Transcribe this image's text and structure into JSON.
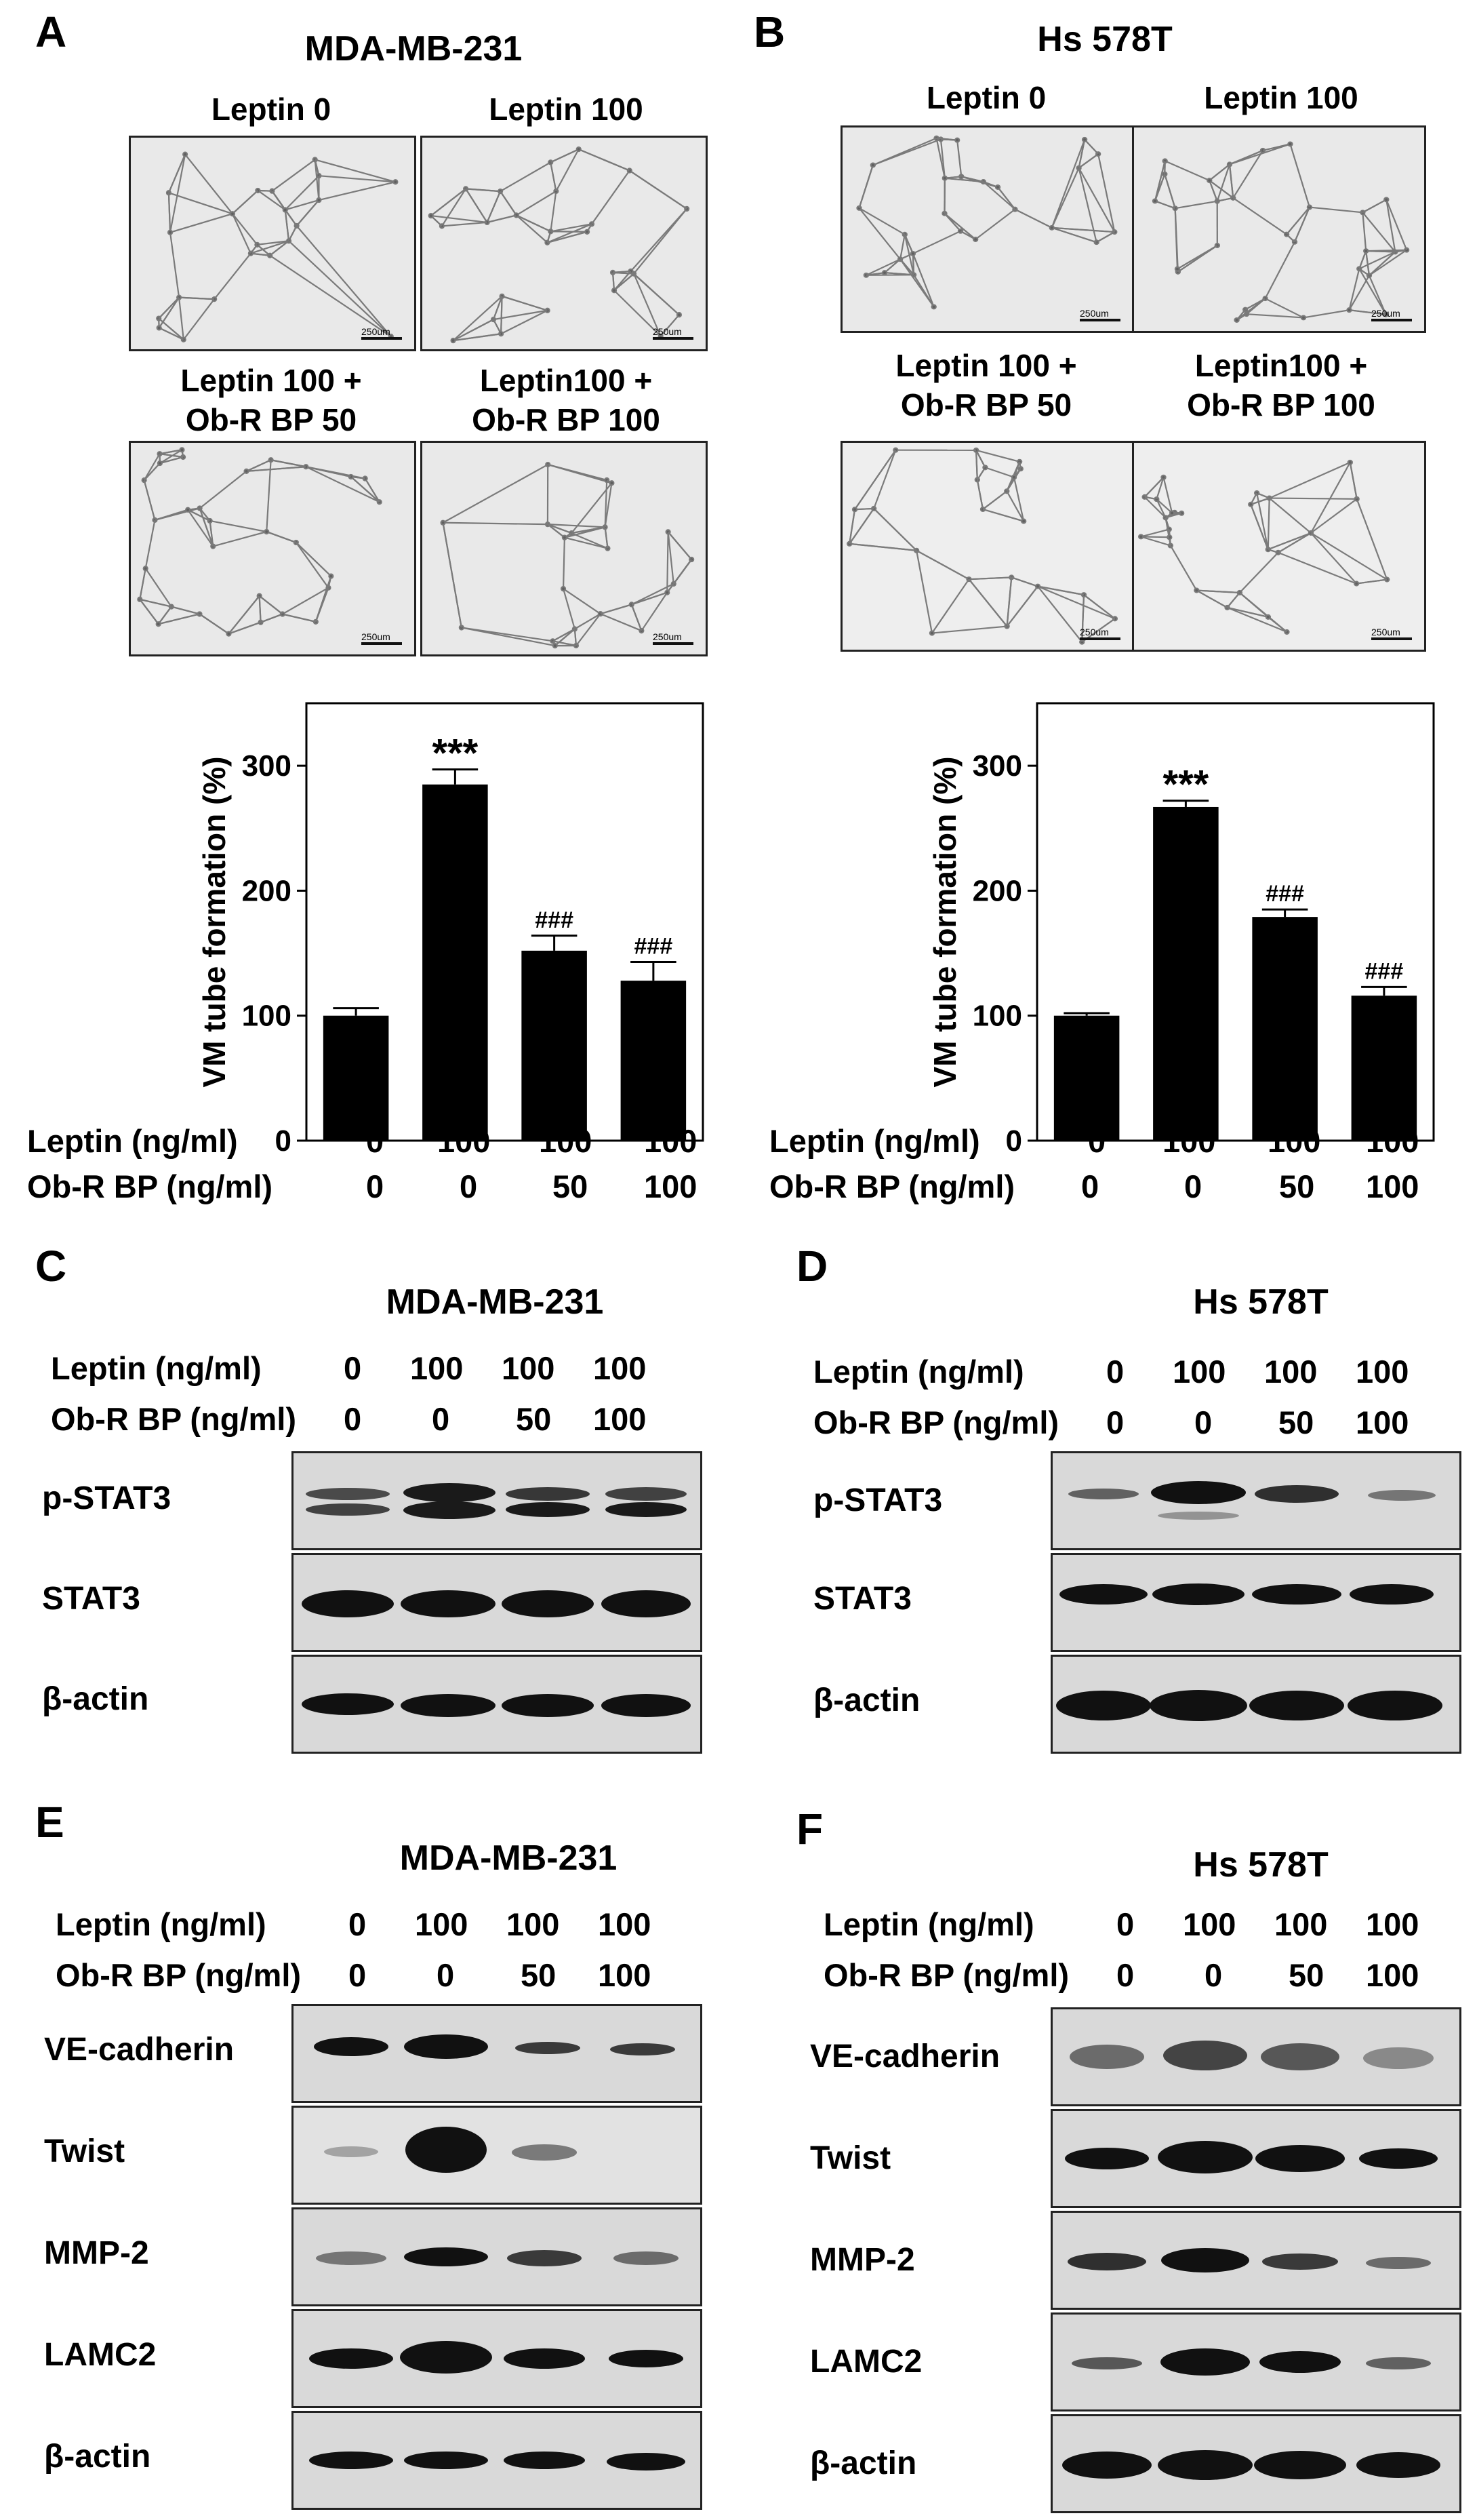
{
  "panels": {
    "A": {
      "letter": "A",
      "cell_line": "MDA-MB-231",
      "images": [
        "Leptin 0",
        "Leptin 100",
        "Leptin 100 +\nOb-R BP 50",
        "Leptin100 +\nOb-R BP 100"
      ],
      "scale_label": "250um"
    },
    "B": {
      "letter": "B",
      "cell_line": "Hs 578T",
      "images": [
        "Leptin 0",
        "Leptin 100",
        "Leptin 100 +\nOb-R BP 50",
        "Leptin100 +\nOb-R BP 100"
      ],
      "scale_label": "250um"
    },
    "C": {
      "letter": "C",
      "cell_line": "MDA-MB-231",
      "blots": [
        "p-STAT3",
        "STAT3",
        "β-actin"
      ]
    },
    "D": {
      "letter": "D",
      "cell_line": "Hs 578T",
      "blots": [
        "p-STAT3",
        "STAT3",
        "β-actin"
      ]
    },
    "E": {
      "letter": "E",
      "cell_line": "MDA-MB-231",
      "blots": [
        "VE-cadherin",
        "Twist",
        "MMP-2",
        "LAMC2",
        "β-actin"
      ]
    },
    "F": {
      "letter": "F",
      "cell_line": "Hs 578T",
      "blots": [
        "VE-cadherin",
        "Twist",
        "MMP-2",
        "LAMC2",
        "β-actin"
      ]
    }
  },
  "treatment_table": {
    "leptin_label": "Leptin (ng/ml)",
    "obr_label": "Ob-R BP (ng/ml)",
    "leptin_values": [
      "0",
      "100",
      "100",
      "100"
    ],
    "obr_values": [
      "0",
      "0",
      "50",
      "100"
    ]
  },
  "chart_data": [
    {
      "type": "bar",
      "panel": "A",
      "ylabel": "VM tube formation (%)",
      "ylim": [
        0,
        350
      ],
      "yticks": [
        "0",
        "100",
        "200",
        "300"
      ],
      "categories": [
        "0 / 0",
        "100 / 0",
        "100 / 50",
        "100 / 100"
      ],
      "values": [
        100,
        285,
        152,
        128
      ],
      "errors": [
        6,
        12,
        12,
        15
      ],
      "annotations": [
        "",
        "***",
        "###",
        "###"
      ],
      "bar_color": "#000000"
    },
    {
      "type": "bar",
      "panel": "B",
      "ylabel": "VM tube formation (%)",
      "ylim": [
        0,
        350
      ],
      "yticks": [
        "0",
        "100",
        "200",
        "300"
      ],
      "categories": [
        "0 / 0",
        "100 / 0",
        "100 / 50",
        "100 / 100"
      ],
      "values": [
        100,
        267,
        179,
        116
      ],
      "errors": [
        2,
        5,
        6,
        7
      ],
      "annotations": [
        "",
        "***",
        "###",
        "###"
      ],
      "bar_color": "#000000"
    }
  ]
}
